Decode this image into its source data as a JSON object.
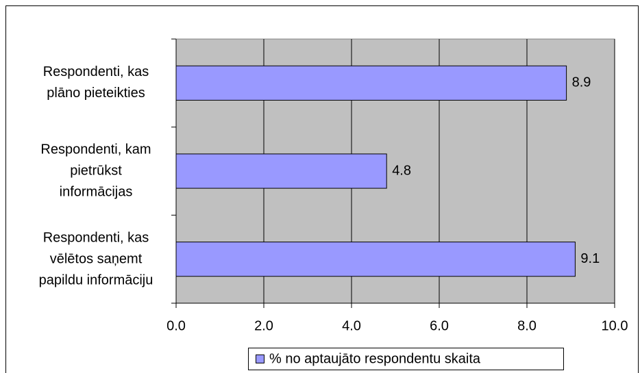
{
  "chart_data": {
    "type": "barh",
    "categories": [
      "Respondenti, kas\nplāno pieteikties",
      "Respondenti, kam\npietrūkst\ninformācijas",
      "Respondenti, kas\nvēlētos saņemt\npapildu informāciju"
    ],
    "series": [
      {
        "name": "% no aptaujāto respondentu skaita",
        "color": "#9999ff",
        "values": [
          8.9,
          4.8,
          9.1
        ]
      }
    ],
    "xlim": [
      0,
      10
    ],
    "xticks": [
      {
        "value": 0,
        "label": "0.0"
      },
      {
        "value": 2,
        "label": "2.0"
      },
      {
        "value": 4,
        "label": "4.0"
      },
      {
        "value": 6,
        "label": "6.0"
      },
      {
        "value": 8,
        "label": "8.0"
      },
      {
        "value": 10,
        "label": "10.0"
      }
    ],
    "grid": true,
    "legend": "bottom"
  }
}
